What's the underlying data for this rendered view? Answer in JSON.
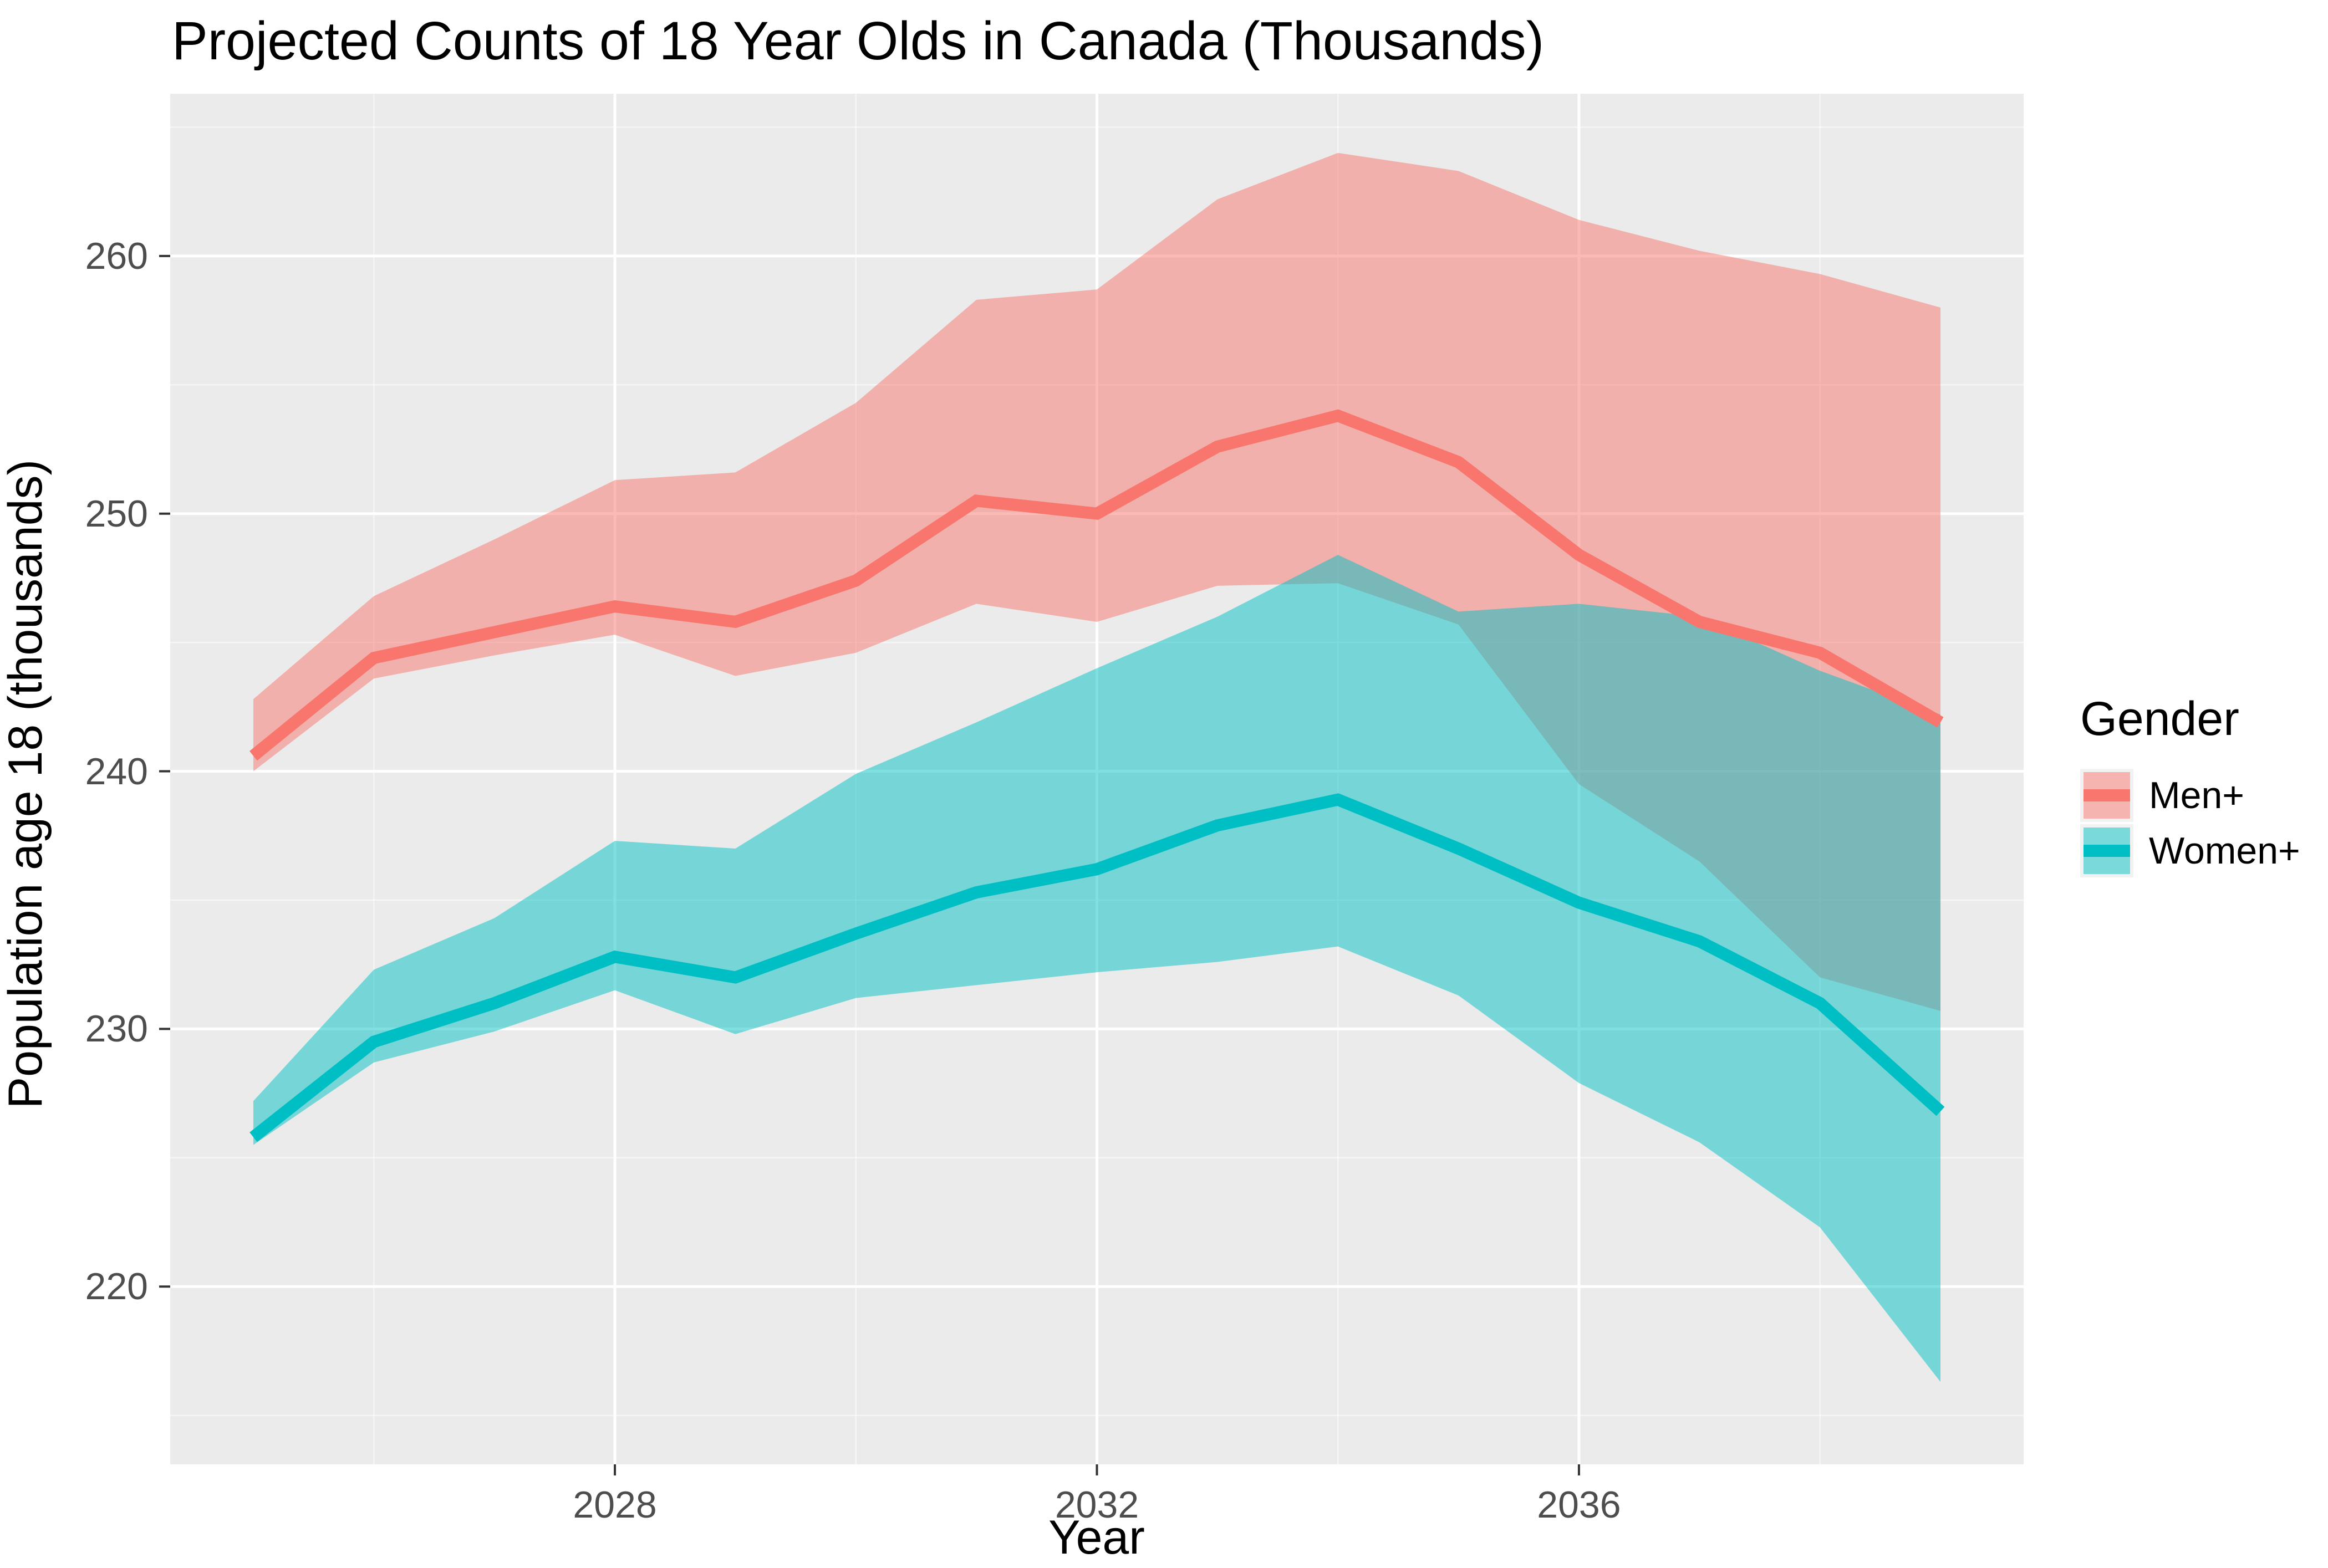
{
  "title": "Projected Counts of 18 Year Olds in Canada (Thousands)",
  "axes": {
    "x_label": "Year",
    "y_label": "Population age 18 (thousands)",
    "x_ticks": [
      2028,
      2032,
      2036
    ],
    "x_minor_ticks": [
      2026,
      2030,
      2034,
      2038
    ],
    "y_ticks": [
      220,
      230,
      240,
      250,
      260
    ],
    "y_minor_ticks": [
      215,
      225,
      235,
      245,
      255,
      265
    ]
  },
  "legend": {
    "title": "Gender",
    "items": [
      {
        "label": "Men+",
        "color": "#F8766D"
      },
      {
        "label": "Women+",
        "color": "#00BFC4"
      }
    ]
  },
  "colors": {
    "panel_background": "#EBEBEB",
    "grid_major": "#FFFFFF",
    "grid_minor": "#FFFFFF",
    "tick_mark": "#333333",
    "tick_text": "#4D4D4D",
    "men_line": "#F8766D",
    "women_line": "#00BFC4",
    "ribbon_opacity": 0.5
  },
  "chart_data": {
    "type": "line",
    "title": "Projected Counts of 18 Year Olds in Canada (Thousands)",
    "xlabel": "Year",
    "ylabel": "Population age 18 (thousands)",
    "x": [
      2025,
      2026,
      2027,
      2028,
      2029,
      2030,
      2031,
      2032,
      2033,
      2034,
      2035,
      2036,
      2037,
      2038,
      2039
    ],
    "xlim": [
      2024.31,
      2039.69
    ],
    "ylim": [
      213.1,
      266.3
    ],
    "grid": true,
    "legend_position": "right",
    "series": [
      {
        "name": "Men+",
        "color": "#F8766D",
        "values": [
          240.6,
          244.4,
          245.4,
          246.4,
          245.8,
          247.4,
          250.5,
          250.0,
          252.6,
          253.8,
          252.0,
          248.4,
          245.8,
          244.6,
          241.9
        ],
        "upper": [
          242.8,
          246.8,
          249.0,
          251.3,
          251.6,
          254.3,
          258.3,
          258.7,
          262.2,
          264.0,
          263.3,
          261.4,
          260.2,
          259.3,
          258.0
        ],
        "lower": [
          240.0,
          243.6,
          244.5,
          245.3,
          243.7,
          244.6,
          246.5,
          245.8,
          247.2,
          247.3,
          245.7,
          239.5,
          236.5,
          232.0,
          230.7
        ]
      },
      {
        "name": "Women+",
        "color": "#00BFC4",
        "values": [
          225.8,
          229.5,
          231.0,
          232.8,
          232.0,
          233.7,
          235.3,
          236.2,
          237.9,
          238.9,
          237.0,
          234.9,
          233.4,
          231.0,
          226.8
        ],
        "upper": [
          227.2,
          232.3,
          234.3,
          237.3,
          237.0,
          239.9,
          241.9,
          244.0,
          246.0,
          248.4,
          246.2,
          246.5,
          246.0,
          243.9,
          242.2
        ],
        "lower": [
          225.5,
          228.7,
          229.9,
          231.5,
          229.8,
          231.2,
          231.7,
          232.2,
          232.6,
          233.2,
          231.3,
          227.9,
          225.6,
          222.3,
          216.3
        ]
      }
    ]
  }
}
